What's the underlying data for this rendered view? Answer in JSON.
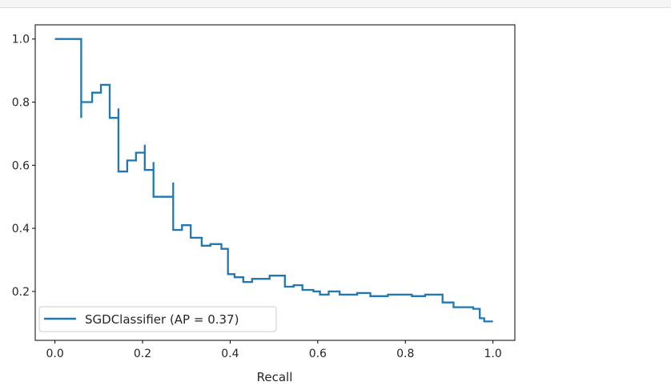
{
  "chart_data": {
    "type": "line",
    "title": "",
    "xlabel": "Recall",
    "ylabel": "",
    "xlim": [
      -0.045,
      1.05
    ],
    "ylim": [
      0.045,
      1.045
    ],
    "grid": false,
    "legend_position": "lower-left",
    "x_ticks": [
      "0.0",
      "0.2",
      "0.4",
      "0.6",
      "0.8",
      "1.0"
    ],
    "y_ticks": [
      "0.2",
      "0.4",
      "0.6",
      "0.8",
      "1.0"
    ],
    "colors": {
      "series": "#1f77b4"
    },
    "series": [
      {
        "name": "SGDClassifier (AP = 0.37)",
        "drawstyle": "steps-post",
        "x": [
          0.0,
          0.06,
          0.06,
          0.06,
          0.085,
          0.105,
          0.125,
          0.125,
          0.145,
          0.145,
          0.165,
          0.185,
          0.205,
          0.205,
          0.225,
          0.225,
          0.27,
          0.27,
          0.29,
          0.31,
          0.335,
          0.355,
          0.38,
          0.395,
          0.395,
          0.41,
          0.43,
          0.45,
          0.49,
          0.525,
          0.545,
          0.565,
          0.59,
          0.605,
          0.625,
          0.65,
          0.69,
          0.72,
          0.76,
          0.78,
          0.815,
          0.845,
          0.885,
          0.91,
          0.955,
          0.97,
          0.98,
          1.0
        ],
        "y": [
          1.0,
          1.0,
          0.75,
          0.8,
          0.83,
          0.855,
          0.855,
          0.75,
          0.78,
          0.58,
          0.615,
          0.64,
          0.665,
          0.585,
          0.61,
          0.5,
          0.545,
          0.395,
          0.41,
          0.37,
          0.345,
          0.35,
          0.335,
          0.265,
          0.255,
          0.245,
          0.23,
          0.24,
          0.25,
          0.215,
          0.22,
          0.205,
          0.2,
          0.19,
          0.2,
          0.19,
          0.195,
          0.185,
          0.19,
          0.19,
          0.185,
          0.19,
          0.165,
          0.15,
          0.145,
          0.115,
          0.105,
          0.105
        ]
      }
    ]
  }
}
